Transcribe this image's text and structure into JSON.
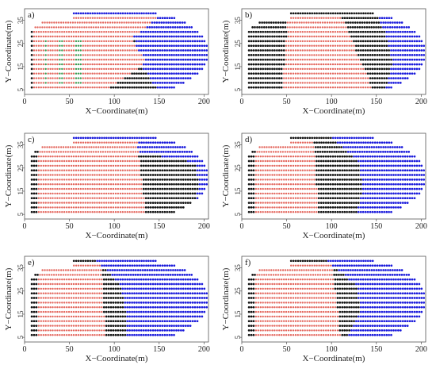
{
  "chart_data": [
    {
      "type": "scatter",
      "panel_label": "a)",
      "xlabel": "X−Coordinate(m)",
      "ylabel": "Y−Coordinate(m)",
      "xlim": [
        0,
        205
      ],
      "ylim": [
        3,
        40
      ],
      "xticks": [
        0,
        50,
        100,
        150,
        200
      ],
      "yticks": [
        5,
        15,
        25,
        35
      ],
      "xtick_labels": [
        "0",
        "50",
        "100",
        "150",
        "200"
      ],
      "ytick_labels": [
        "5",
        "15",
        "25",
        "35"
      ],
      "series_colors": {
        "blue": "#1a1adb",
        "black": "#111111",
        "red": "#e3655c",
        "green": "#3a9a50"
      },
      "boundaries": {
        "black_to_blue": [
          50,
          122,
          128,
          146
        ],
        "red_left": 10,
        "red_right": [
          155,
          120,
          135,
          95
        ],
        "green_right": 70
      }
    },
    {
      "type": "scatter",
      "panel_label": "b)",
      "xlabel": "X−Coordinate(m)",
      "ylabel": "Y−Coordinate(m)",
      "xlim": [
        0,
        205
      ],
      "ylim": [
        3,
        40
      ],
      "xticks": [
        0,
        50,
        100,
        150,
        200
      ],
      "yticks": [
        5,
        15,
        25,
        35
      ],
      "xtick_labels": [
        "0",
        "50",
        "100",
        "150",
        "200"
      ],
      "ytick_labels": [
        "5",
        "15",
        "25",
        "35"
      ],
      "series_colors": {
        "blue": "#1a1adb",
        "black": "#111111",
        "red": "#e3655c"
      },
      "boundaries": {
        "black_to_blue": [
          150,
          162,
          168,
          160
        ],
        "red_left": [
          52,
          45
        ],
        "red_right": [
          110,
          145
        ]
      }
    },
    {
      "type": "scatter",
      "panel_label": "c)",
      "xlabel": "X−Coordinate(m)",
      "ylabel": "Y−Coordinate(m)",
      "xlim": [
        0,
        205
      ],
      "ylim": [
        3,
        40
      ],
      "xticks": [
        0,
        50,
        100,
        150,
        200
      ],
      "yticks": [
        5,
        15,
        25,
        35
      ],
      "xtick_labels": [
        "0",
        "50",
        "100",
        "150",
        "200"
      ],
      "ytick_labels": [
        "5",
        "15",
        "25",
        "35"
      ],
      "series_colors": {
        "blue": "#1a1adb",
        "black": "#111111",
        "red": "#e3655c"
      },
      "boundaries": {
        "black_to_blue": [
          40,
          190,
          195,
          185
        ],
        "red_left": 15,
        "red_right": [
          125,
          135
        ]
      }
    },
    {
      "type": "scatter",
      "panel_label": "d)",
      "xlabel": "X−Coordinate(m)",
      "ylabel": "Y−Coordinate(m)",
      "xlim": [
        0,
        205
      ],
      "ylim": [
        3,
        40
      ],
      "xticks": [
        0,
        50,
        100,
        150,
        200
      ],
      "yticks": [
        5,
        15,
        25,
        35
      ],
      "xtick_labels": [
        "0",
        "50",
        "100",
        "150",
        "200"
      ],
      "ytick_labels": [
        "5",
        "15",
        "25",
        "35"
      ],
      "series_colors": {
        "blue": "#1a1adb",
        "black": "#111111",
        "red": "#e3655c"
      },
      "boundaries": {
        "black_to_blue": [
          100,
          130,
          135,
          128
        ],
        "red_left": 15,
        "red_right": [
          80,
          85
        ]
      }
    },
    {
      "type": "scatter",
      "panel_label": "e)",
      "xlabel": "X−Coordinate(m)",
      "ylabel": "Y−Coordinate(m)",
      "xlim": [
        0,
        205
      ],
      "ylim": [
        3,
        40
      ],
      "xticks": [
        0,
        50,
        100,
        150,
        200
      ],
      "yticks": [
        5,
        15,
        25,
        35
      ],
      "xtick_labels": [
        "0",
        "50",
        "100",
        "150",
        "200"
      ],
      "ytick_labels": [
        "5",
        "15",
        "25",
        "35"
      ],
      "series_colors": {
        "blue": "#1a1adb",
        "black": "#111111",
        "red": "#e3655c"
      },
      "boundaries": {
        "black_to_blue": [
          80,
          108,
          112,
          112
        ],
        "red_left": 15,
        "red_right": [
          85,
          90
        ]
      }
    },
    {
      "type": "scatter",
      "panel_label": "f)",
      "xlabel": "X−Coordinate(m)",
      "ylabel": "Y−Coordinate(m)",
      "xlim": [
        0,
        205
      ],
      "ylim": [
        3,
        40
      ],
      "xticks": [
        0,
        50,
        100,
        150,
        200
      ],
      "yticks": [
        5,
        15,
        25,
        35
      ],
      "xtick_labels": [
        "0",
        "50",
        "100",
        "150",
        "200"
      ],
      "ytick_labels": [
        "5",
        "15",
        "25",
        "35"
      ],
      "series_colors": {
        "blue": "#1a1adb",
        "black": "#111111",
        "red": "#e3655c"
      },
      "boundaries": {
        "black_to_blue": [
          95,
          128,
          132,
          118
        ],
        "red_left": 15,
        "red_right": [
          100,
          110
        ]
      }
    }
  ]
}
